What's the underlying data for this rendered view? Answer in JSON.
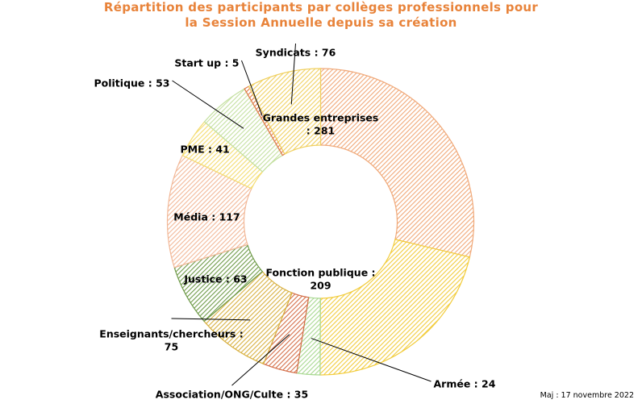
{
  "chart_data": {
    "type": "pie",
    "title_lines": [
      "Répartition des participants par collèges professionnels pour",
      "la Session Annuelle depuis sa création"
    ],
    "title_color": "#E8833A",
    "hole": true,
    "start": "top, clockwise",
    "categories": [
      "Grandes entreprises",
      "Fonction publique",
      "Armée",
      "Association/ONG/Culte",
      "Enseignants/chercheurs",
      "Justice",
      "Média",
      "PME",
      "Politique",
      "Start up",
      "Syndicats"
    ],
    "values": [
      281,
      209,
      24,
      35,
      75,
      63,
      117,
      41,
      53,
      5,
      76
    ],
    "label_texts": [
      [
        "Grandes entreprises",
        ": 281"
      ],
      [
        "Fonction publique :",
        "209"
      ],
      [
        "Armée : 24"
      ],
      [
        "Association/ONG/Culte : 35"
      ],
      [
        "Enseignants/chercheurs :",
        "75"
      ],
      [
        "Justice : 63"
      ],
      [
        "Média : 117"
      ],
      [
        "PME : 41"
      ],
      [
        "Politique : 53"
      ],
      [
        "Start up : 5"
      ],
      [
        "Syndicats : 76"
      ]
    ],
    "colors": [
      "#F0A878",
      "#F2CC3C",
      "#A8D890",
      "#D46E48",
      "#D8B040",
      "#6E9A48",
      "#F2B898",
      "#F4DC70",
      "#C4E0A0",
      "#E07A48",
      "#F0D060"
    ],
    "fill_pattern": "diagonal hatch"
  },
  "footnote": "Maj : 17 novembre 2022"
}
